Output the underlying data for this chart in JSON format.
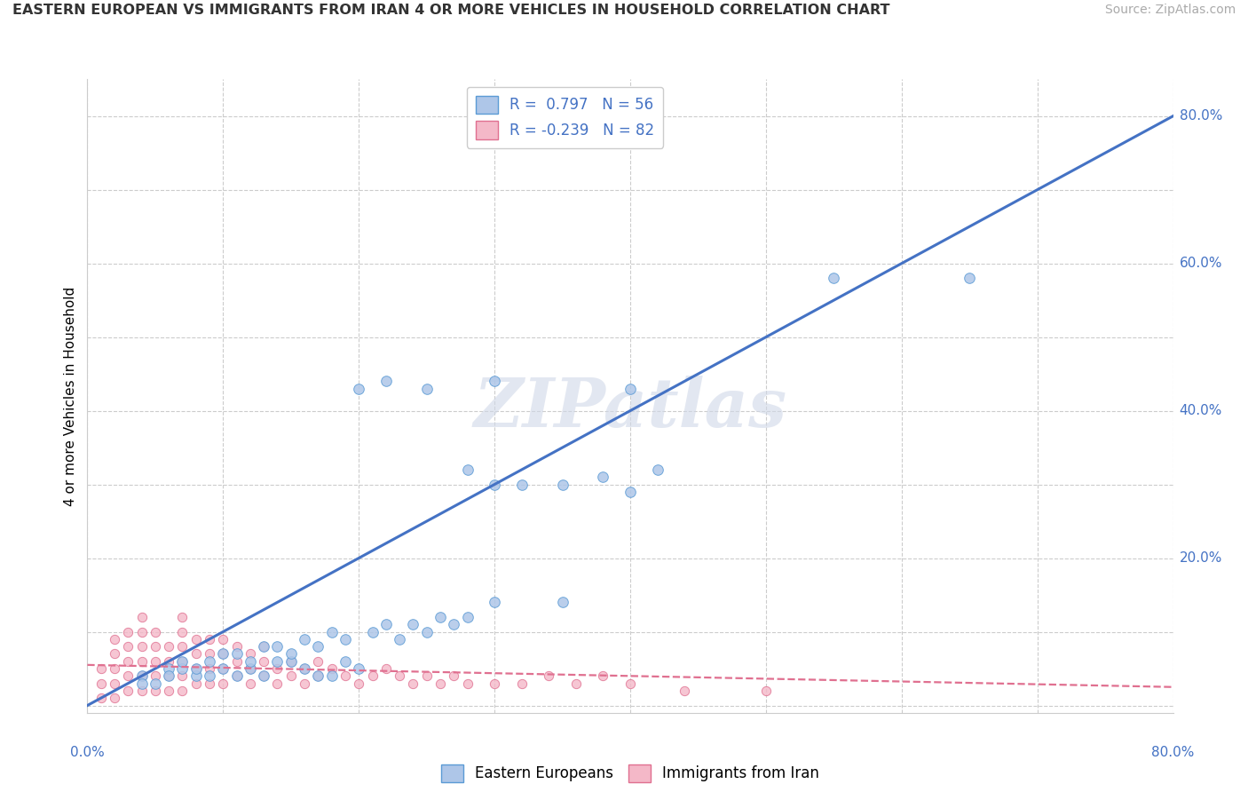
{
  "title": "EASTERN EUROPEAN VS IMMIGRANTS FROM IRAN 4 OR MORE VEHICLES IN HOUSEHOLD CORRELATION CHART",
  "source": "Source: ZipAtlas.com",
  "ylabel": "4 or more Vehicles in Household",
  "watermark": "ZIPatlas",
  "legend1_label": "Eastern Europeans",
  "legend2_label": "Immigrants from Iran",
  "R1": 0.797,
  "N1": 56,
  "R2": -0.239,
  "N2": 82,
  "color_blue": "#aec6e8",
  "color_blue_edge": "#5b9bd5",
  "color_blue_line": "#4472c4",
  "color_pink": "#f4b8c8",
  "color_pink_edge": "#e07090",
  "color_pink_line": "#e07090",
  "color_blue_text": "#4472c4",
  "background": "#ffffff",
  "grid_color": "#cccccc",
  "blue_x": [
    0.04,
    0.06,
    0.07,
    0.08,
    0.09,
    0.1,
    0.11,
    0.12,
    0.13,
    0.14,
    0.15,
    0.16,
    0.17,
    0.18,
    0.19,
    0.2,
    0.21,
    0.22,
    0.23,
    0.24,
    0.25,
    0.26,
    0.27,
    0.28,
    0.3,
    0.32,
    0.35,
    0.38,
    0.4,
    0.42,
    0.04,
    0.05,
    0.06,
    0.07,
    0.08,
    0.09,
    0.1,
    0.11,
    0.12,
    0.13,
    0.14,
    0.15,
    0.16,
    0.17,
    0.18,
    0.19,
    0.2,
    0.22,
    0.25,
    0.28,
    0.3,
    0.35,
    0.55,
    0.65,
    0.4,
    0.3
  ],
  "blue_y": [
    0.04,
    0.05,
    0.05,
    0.04,
    0.04,
    0.05,
    0.04,
    0.05,
    0.04,
    0.06,
    0.06,
    0.05,
    0.04,
    0.04,
    0.06,
    0.05,
    0.1,
    0.11,
    0.09,
    0.11,
    0.1,
    0.12,
    0.11,
    0.12,
    0.3,
    0.3,
    0.3,
    0.31,
    0.43,
    0.32,
    0.03,
    0.03,
    0.04,
    0.06,
    0.05,
    0.06,
    0.07,
    0.07,
    0.06,
    0.08,
    0.08,
    0.07,
    0.09,
    0.08,
    0.1,
    0.09,
    0.43,
    0.44,
    0.43,
    0.32,
    0.44,
    0.14,
    0.58,
    0.58,
    0.29,
    0.14
  ],
  "pink_x": [
    0.01,
    0.01,
    0.02,
    0.02,
    0.02,
    0.02,
    0.03,
    0.03,
    0.03,
    0.03,
    0.03,
    0.04,
    0.04,
    0.04,
    0.04,
    0.04,
    0.04,
    0.05,
    0.05,
    0.05,
    0.05,
    0.05,
    0.06,
    0.06,
    0.06,
    0.06,
    0.07,
    0.07,
    0.07,
    0.07,
    0.07,
    0.07,
    0.08,
    0.08,
    0.08,
    0.08,
    0.09,
    0.09,
    0.09,
    0.09,
    0.1,
    0.1,
    0.1,
    0.1,
    0.11,
    0.11,
    0.11,
    0.12,
    0.12,
    0.12,
    0.13,
    0.13,
    0.13,
    0.14,
    0.14,
    0.15,
    0.15,
    0.16,
    0.16,
    0.17,
    0.17,
    0.18,
    0.19,
    0.2,
    0.21,
    0.22,
    0.23,
    0.24,
    0.25,
    0.26,
    0.27,
    0.28,
    0.3,
    0.32,
    0.34,
    0.36,
    0.38,
    0.4,
    0.44,
    0.5,
    0.01,
    0.02
  ],
  "pink_y": [
    0.03,
    0.05,
    0.03,
    0.05,
    0.07,
    0.09,
    0.02,
    0.04,
    0.06,
    0.08,
    0.1,
    0.02,
    0.04,
    0.06,
    0.08,
    0.1,
    0.12,
    0.02,
    0.04,
    0.06,
    0.08,
    0.1,
    0.02,
    0.04,
    0.06,
    0.08,
    0.02,
    0.04,
    0.06,
    0.08,
    0.1,
    0.12,
    0.03,
    0.05,
    0.07,
    0.09,
    0.03,
    0.05,
    0.07,
    0.09,
    0.03,
    0.05,
    0.07,
    0.09,
    0.04,
    0.06,
    0.08,
    0.03,
    0.05,
    0.07,
    0.04,
    0.06,
    0.08,
    0.03,
    0.05,
    0.04,
    0.06,
    0.03,
    0.05,
    0.04,
    0.06,
    0.05,
    0.04,
    0.03,
    0.04,
    0.05,
    0.04,
    0.03,
    0.04,
    0.03,
    0.04,
    0.03,
    0.03,
    0.03,
    0.04,
    0.03,
    0.04,
    0.03,
    0.02,
    0.02,
    0.01,
    0.01
  ],
  "blue_line_x": [
    0.0,
    0.8
  ],
  "blue_line_y": [
    0.0,
    0.8
  ],
  "pink_line_x": [
    0.0,
    0.8
  ],
  "pink_line_y": [
    0.055,
    0.025
  ],
  "xlim": [
    0.0,
    0.8
  ],
  "ylim": [
    -0.01,
    0.85
  ],
  "xtick_positions": [
    0.0,
    0.1,
    0.2,
    0.3,
    0.4,
    0.5,
    0.6,
    0.7,
    0.8
  ],
  "ytick_positions": [
    0.0,
    0.1,
    0.2,
    0.3,
    0.4,
    0.5,
    0.6,
    0.7,
    0.8
  ],
  "right_ytick_values": [
    0.0,
    0.2,
    0.4,
    0.6,
    0.8
  ],
  "right_ytick_labels": [
    "",
    "20.0%",
    "40.0%",
    "60.0%",
    "80.0%"
  ]
}
